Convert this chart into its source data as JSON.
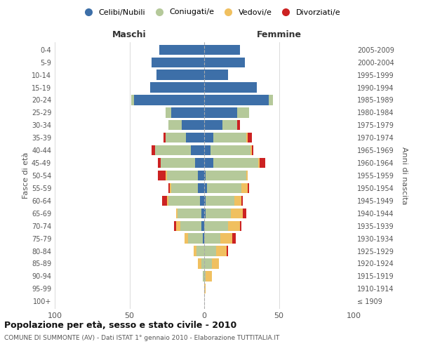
{
  "age_groups": [
    "100+",
    "95-99",
    "90-94",
    "85-89",
    "80-84",
    "75-79",
    "70-74",
    "65-69",
    "60-64",
    "55-59",
    "50-54",
    "45-49",
    "40-44",
    "35-39",
    "30-34",
    "25-29",
    "20-24",
    "15-19",
    "10-14",
    "5-9",
    "0-4"
  ],
  "birth_years": [
    "≤ 1909",
    "1910-1914",
    "1915-1919",
    "1920-1924",
    "1925-1929",
    "1930-1934",
    "1935-1939",
    "1940-1944",
    "1945-1949",
    "1950-1954",
    "1955-1959",
    "1960-1964",
    "1965-1969",
    "1970-1974",
    "1975-1979",
    "1980-1984",
    "1985-1989",
    "1990-1994",
    "1995-1999",
    "2000-2004",
    "2005-2009"
  ],
  "colors": {
    "celibi": "#3d6fa8",
    "coniugati": "#b5c99a",
    "vedovi": "#f0c060",
    "divorziati": "#cc2222"
  },
  "maschi": {
    "celibi": [
      0,
      0,
      0,
      0,
      0,
      1,
      2,
      2,
      3,
      4,
      4,
      6,
      9,
      12,
      15,
      22,
      47,
      36,
      32,
      35,
      30
    ],
    "coniugati": [
      0,
      0,
      1,
      2,
      5,
      10,
      14,
      16,
      21,
      18,
      21,
      23,
      24,
      14,
      9,
      4,
      2,
      0,
      0,
      0,
      0
    ],
    "vedovi": [
      0,
      0,
      0,
      2,
      2,
      2,
      3,
      1,
      1,
      1,
      1,
      0,
      0,
      0,
      0,
      0,
      0,
      0,
      0,
      0,
      0
    ],
    "divorziati": [
      0,
      0,
      0,
      0,
      0,
      0,
      1,
      0,
      3,
      1,
      5,
      2,
      2,
      1,
      0,
      0,
      0,
      0,
      0,
      0,
      0
    ]
  },
  "femmine": {
    "celibi": [
      0,
      0,
      0,
      0,
      0,
      0,
      0,
      1,
      1,
      2,
      1,
      6,
      4,
      6,
      12,
      22,
      43,
      35,
      16,
      27,
      24
    ],
    "coniugati": [
      0,
      0,
      1,
      5,
      8,
      11,
      16,
      17,
      19,
      23,
      27,
      30,
      27,
      22,
      10,
      8,
      3,
      0,
      0,
      0,
      0
    ],
    "vedovi": [
      0,
      1,
      4,
      5,
      7,
      8,
      8,
      8,
      5,
      4,
      1,
      1,
      1,
      1,
      0,
      0,
      0,
      0,
      0,
      0,
      0
    ],
    "divorziati": [
      0,
      0,
      0,
      0,
      1,
      2,
      1,
      2,
      1,
      1,
      0,
      4,
      1,
      3,
      2,
      0,
      0,
      0,
      0,
      0,
      0
    ]
  },
  "xlim": 100,
  "title": "Popolazione per età, sesso e stato civile - 2010",
  "subtitle": "COMUNE DI SUMMONTE (AV) - Dati ISTAT 1° gennaio 2010 - Elaborazione TUTTITALIA.IT",
  "ylabel_left": "Fasce di età",
  "ylabel_right": "Anni di nascita",
  "xlabel_left": "Maschi",
  "xlabel_right": "Femmine",
  "legend_labels": [
    "Celibi/Nubili",
    "Coniugati/e",
    "Vedovi/e",
    "Divorziati/e"
  ],
  "background_color": "#ffffff",
  "grid_color": "#cccccc",
  "bar_height": 0.8
}
